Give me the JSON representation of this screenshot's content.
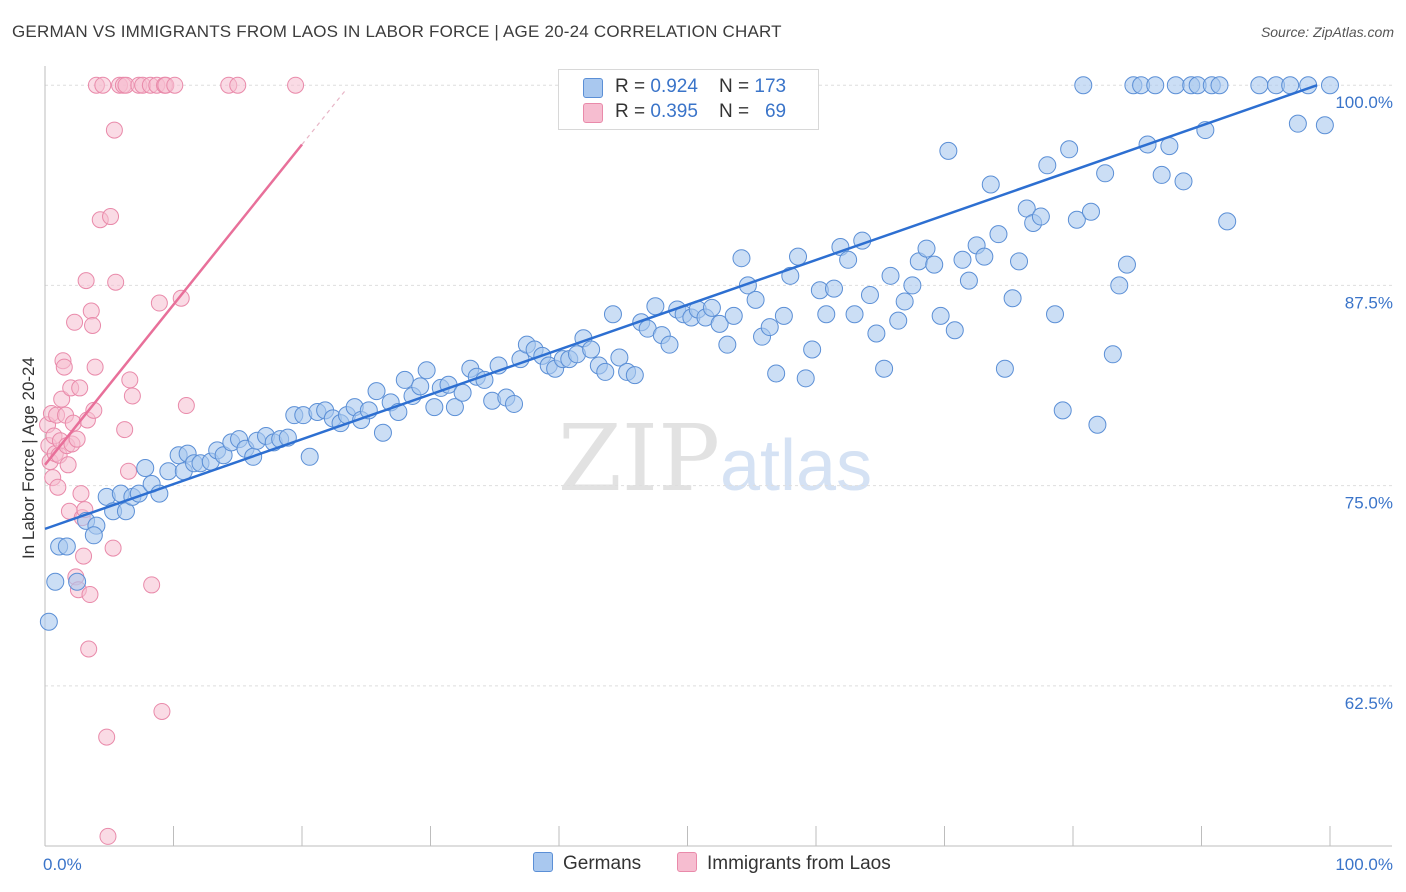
{
  "title": "GERMAN VS IMMIGRANTS FROM LAOS IN LABOR FORCE | AGE 20-24 CORRELATION CHART",
  "source": "Source: ZipAtlas.com",
  "watermark": {
    "zip": "ZIP",
    "atlas": "atlas"
  },
  "colors": {
    "blue_fill": "#a9c8ef",
    "blue_stroke": "#5b8fd6",
    "blue_line": "#2d6fd1",
    "pink_fill": "#f6bdd0",
    "pink_stroke": "#e98aaa",
    "pink_line": "#e8709a",
    "axis_text": "#3a74c9",
    "grid": "#dedede"
  },
  "legend": {
    "rows": [
      {
        "r_label": "R = ",
        "r_value": "0.924",
        "n_label": "N = ",
        "n_value": "173"
      },
      {
        "r_label": "R = ",
        "r_value": "0.395",
        "n_label": "N = ",
        "n_value": "69"
      }
    ]
  },
  "chart_data": {
    "type": "scatter",
    "title": "GERMAN VS IMMIGRANTS FROM LAOS IN LABOR FORCE | AGE 20-24 CORRELATION CHART",
    "xlabel": "",
    "ylabel": "In Labor Force | Age 20-24",
    "xlim": [
      0,
      100
    ],
    "ylim": [
      52.5,
      101.2
    ],
    "x_tick_labels": [
      "0.0%",
      "100.0%"
    ],
    "y_ticks": [
      62.5,
      75.0,
      87.5,
      100.0
    ],
    "y_tick_labels": [
      "62.5%",
      "75.0%",
      "87.5%",
      "100.0%"
    ],
    "grid": true,
    "legend_position": "top-center",
    "series": [
      {
        "name": "Germans",
        "color": "#a9c8ef",
        "R": 0.924,
        "N": 173,
        "trend": {
          "x": [
            0,
            99
          ],
          "y": [
            72.3,
            100.0
          ]
        },
        "points": [
          [
            0.3,
            66.5
          ],
          [
            0.8,
            69.0
          ],
          [
            1.1,
            71.2
          ],
          [
            1.7,
            71.2
          ],
          [
            2.5,
            69.0
          ],
          [
            3.2,
            72.8
          ],
          [
            4.0,
            72.5
          ],
          [
            3.8,
            71.9
          ],
          [
            4.8,
            74.3
          ],
          [
            5.3,
            73.4
          ],
          [
            5.9,
            74.5
          ],
          [
            6.3,
            73.4
          ],
          [
            6.8,
            74.3
          ],
          [
            7.3,
            74.5
          ],
          [
            7.8,
            76.1
          ],
          [
            8.3,
            75.1
          ],
          [
            8.9,
            74.5
          ],
          [
            9.6,
            75.9
          ],
          [
            10.4,
            76.9
          ],
          [
            10.8,
            75.9
          ],
          [
            11.1,
            77.0
          ],
          [
            11.6,
            76.4
          ],
          [
            12.1,
            76.4
          ],
          [
            12.9,
            76.5
          ],
          [
            13.4,
            77.2
          ],
          [
            13.9,
            76.9
          ],
          [
            14.5,
            77.7
          ],
          [
            15.1,
            77.9
          ],
          [
            15.6,
            77.3
          ],
          [
            16.2,
            76.8
          ],
          [
            16.5,
            77.8
          ],
          [
            17.2,
            78.1
          ],
          [
            17.8,
            77.7
          ],
          [
            18.3,
            77.9
          ],
          [
            18.9,
            78.0
          ],
          [
            19.4,
            79.4
          ],
          [
            20.1,
            79.4
          ],
          [
            20.6,
            76.8
          ],
          [
            21.2,
            79.6
          ],
          [
            21.8,
            79.7
          ],
          [
            22.4,
            79.2
          ],
          [
            23.0,
            78.9
          ],
          [
            23.5,
            79.4
          ],
          [
            24.1,
            79.9
          ],
          [
            24.6,
            79.1
          ],
          [
            25.2,
            79.7
          ],
          [
            25.8,
            80.9
          ],
          [
            26.3,
            78.3
          ],
          [
            26.9,
            80.2
          ],
          [
            27.5,
            79.6
          ],
          [
            28.0,
            81.6
          ],
          [
            28.6,
            80.6
          ],
          [
            29.2,
            81.2
          ],
          [
            29.7,
            82.2
          ],
          [
            30.3,
            79.9
          ],
          [
            30.8,
            81.1
          ],
          [
            31.4,
            81.3
          ],
          [
            31.9,
            79.9
          ],
          [
            32.5,
            80.8
          ],
          [
            33.1,
            82.3
          ],
          [
            33.6,
            81.8
          ],
          [
            34.2,
            81.6
          ],
          [
            34.8,
            80.3
          ],
          [
            35.3,
            82.5
          ],
          [
            35.9,
            80.5
          ],
          [
            36.5,
            80.1
          ],
          [
            37.0,
            82.9
          ],
          [
            37.5,
            83.8
          ],
          [
            38.1,
            83.5
          ],
          [
            38.7,
            83.1
          ],
          [
            39.2,
            82.5
          ],
          [
            39.7,
            82.3
          ],
          [
            40.3,
            82.9
          ],
          [
            40.8,
            82.9
          ],
          [
            41.4,
            83.2
          ],
          [
            41.9,
            84.2
          ],
          [
            42.5,
            83.5
          ],
          [
            43.1,
            82.5
          ],
          [
            43.6,
            82.1
          ],
          [
            44.2,
            85.7
          ],
          [
            44.7,
            83.0
          ],
          [
            45.3,
            82.1
          ],
          [
            45.9,
            81.9
          ],
          [
            46.4,
            85.2
          ],
          [
            46.9,
            84.8
          ],
          [
            47.5,
            86.2
          ],
          [
            48.0,
            84.4
          ],
          [
            48.6,
            83.8
          ],
          [
            49.2,
            86.0
          ],
          [
            49.7,
            85.7
          ],
          [
            50.3,
            85.5
          ],
          [
            50.8,
            86.0
          ],
          [
            51.4,
            85.5
          ],
          [
            51.9,
            86.1
          ],
          [
            52.5,
            85.1
          ],
          [
            53.1,
            83.8
          ],
          [
            53.6,
            85.6
          ],
          [
            54.2,
            89.2
          ],
          [
            54.7,
            87.5
          ],
          [
            55.3,
            86.6
          ],
          [
            55.8,
            84.3
          ],
          [
            56.4,
            84.9
          ],
          [
            56.9,
            82.0
          ],
          [
            57.5,
            85.6
          ],
          [
            58.0,
            88.1
          ],
          [
            58.6,
            89.3
          ],
          [
            59.2,
            81.7
          ],
          [
            59.7,
            83.5
          ],
          [
            60.3,
            87.2
          ],
          [
            60.8,
            85.7
          ],
          [
            61.4,
            87.3
          ],
          [
            61.9,
            89.9
          ],
          [
            62.5,
            89.1
          ],
          [
            63.0,
            85.7
          ],
          [
            63.6,
            90.3
          ],
          [
            64.2,
            86.9
          ],
          [
            64.7,
            84.5
          ],
          [
            65.3,
            82.3
          ],
          [
            65.8,
            88.1
          ],
          [
            66.4,
            85.3
          ],
          [
            66.9,
            86.5
          ],
          [
            67.5,
            87.5
          ],
          [
            68.0,
            89.0
          ],
          [
            68.6,
            89.8
          ],
          [
            69.2,
            88.8
          ],
          [
            69.7,
            85.6
          ],
          [
            70.3,
            95.9
          ],
          [
            70.8,
            84.7
          ],
          [
            71.4,
            89.1
          ],
          [
            71.9,
            87.8
          ],
          [
            72.5,
            90.0
          ],
          [
            73.1,
            89.3
          ],
          [
            73.6,
            93.8
          ],
          [
            74.2,
            90.7
          ],
          [
            74.7,
            82.3
          ],
          [
            75.3,
            86.7
          ],
          [
            75.8,
            89.0
          ],
          [
            76.4,
            92.3
          ],
          [
            76.9,
            91.4
          ],
          [
            77.5,
            91.8
          ],
          [
            78.0,
            95.0
          ],
          [
            78.6,
            85.7
          ],
          [
            79.2,
            79.7
          ],
          [
            79.7,
            96.0
          ],
          [
            80.3,
            91.6
          ],
          [
            80.8,
            100.0
          ],
          [
            81.4,
            92.1
          ],
          [
            81.9,
            78.8
          ],
          [
            82.5,
            94.5
          ],
          [
            83.1,
            83.2
          ],
          [
            83.6,
            87.5
          ],
          [
            84.2,
            88.8
          ],
          [
            84.7,
            100.0
          ],
          [
            85.3,
            100.0
          ],
          [
            85.8,
            96.3
          ],
          [
            86.4,
            100.0
          ],
          [
            86.9,
            94.4
          ],
          [
            87.5,
            96.2
          ],
          [
            88.0,
            100.0
          ],
          [
            88.6,
            94.0
          ],
          [
            89.2,
            100.0
          ],
          [
            89.7,
            100.0
          ],
          [
            90.3,
            97.2
          ],
          [
            90.8,
            100.0
          ],
          [
            91.4,
            100.0
          ],
          [
            92.0,
            91.5
          ],
          [
            94.5,
            100.0
          ],
          [
            95.8,
            100.0
          ],
          [
            96.9,
            100.0
          ],
          [
            97.5,
            97.6
          ],
          [
            98.3,
            100.0
          ],
          [
            99.6,
            97.5
          ],
          [
            100.0,
            100.0
          ]
        ]
      },
      {
        "name": "Immigrants from Laos",
        "color": "#f6bdd0",
        "R": 0.395,
        "N": 69,
        "trend": {
          "x": [
            0,
            20
          ],
          "y": [
            76.3,
            96.3
          ]
        },
        "trend_ext": {
          "x": [
            20,
            23.5
          ],
          "y": [
            96.3,
            99.8
          ]
        },
        "points": [
          [
            0.2,
            78.8
          ],
          [
            0.3,
            77.5
          ],
          [
            0.4,
            76.5
          ],
          [
            0.5,
            79.5
          ],
          [
            0.6,
            75.5
          ],
          [
            0.7,
            78.1
          ],
          [
            0.8,
            77.0
          ],
          [
            0.9,
            79.4
          ],
          [
            1.0,
            74.9
          ],
          [
            1.1,
            76.9
          ],
          [
            1.2,
            77.8
          ],
          [
            1.3,
            80.4
          ],
          [
            1.4,
            82.8
          ],
          [
            1.5,
            82.4
          ],
          [
            1.6,
            79.4
          ],
          [
            1.7,
            77.5
          ],
          [
            1.8,
            76.3
          ],
          [
            1.9,
            73.4
          ],
          [
            2.0,
            81.1
          ],
          [
            2.1,
            77.6
          ],
          [
            2.2,
            78.9
          ],
          [
            2.3,
            85.2
          ],
          [
            2.4,
            69.3
          ],
          [
            2.5,
            77.9
          ],
          [
            2.6,
            68.5
          ],
          [
            2.7,
            81.1
          ],
          [
            2.8,
            74.5
          ],
          [
            2.9,
            73.0
          ],
          [
            3.0,
            70.6
          ],
          [
            3.1,
            73.5
          ],
          [
            3.2,
            87.8
          ],
          [
            3.3,
            79.1
          ],
          [
            3.4,
            64.8
          ],
          [
            3.5,
            68.2
          ],
          [
            3.6,
            85.9
          ],
          [
            3.7,
            85.0
          ],
          [
            3.8,
            79.7
          ],
          [
            3.9,
            82.4
          ],
          [
            4.0,
            100.0
          ],
          [
            4.3,
            91.6
          ],
          [
            4.5,
            100.0
          ],
          [
            4.8,
            59.3
          ],
          [
            4.9,
            53.1
          ],
          [
            5.1,
            91.8
          ],
          [
            5.3,
            71.1
          ],
          [
            5.4,
            97.2
          ],
          [
            5.5,
            87.7
          ],
          [
            5.8,
            100.0
          ],
          [
            6.1,
            100.0
          ],
          [
            6.2,
            78.5
          ],
          [
            6.3,
            100.0
          ],
          [
            6.5,
            75.9
          ],
          [
            6.6,
            81.6
          ],
          [
            6.8,
            80.6
          ],
          [
            7.3,
            100.0
          ],
          [
            7.6,
            100.0
          ],
          [
            8.2,
            100.0
          ],
          [
            8.3,
            68.8
          ],
          [
            8.7,
            100.0
          ],
          [
            8.9,
            86.4
          ],
          [
            9.1,
            60.9
          ],
          [
            9.3,
            100.0
          ],
          [
            9.4,
            100.0
          ],
          [
            10.1,
            100.0
          ],
          [
            10.6,
            86.7
          ],
          [
            11.0,
            80.0
          ],
          [
            14.3,
            100.0
          ],
          [
            15.0,
            100.0
          ],
          [
            19.5,
            100.0
          ]
        ]
      }
    ]
  },
  "bottom_legend": {
    "germans": "Germans",
    "laos": "Immigrants from Laos"
  }
}
